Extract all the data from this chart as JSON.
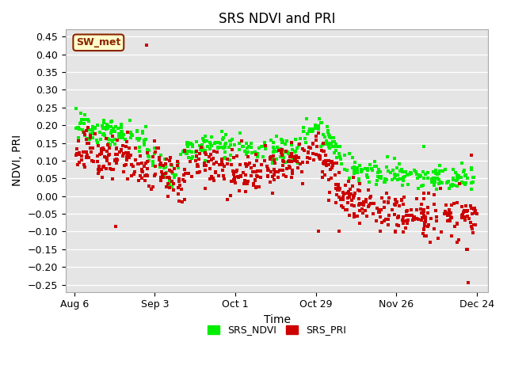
{
  "title": "SRS NDVI and PRI",
  "xlabel": "Time",
  "ylabel": "NDVI, PRI",
  "ylim": [
    -0.27,
    0.47
  ],
  "yticks": [
    -0.25,
    -0.2,
    -0.15,
    -0.1,
    -0.05,
    0.0,
    0.05,
    0.1,
    0.15,
    0.2,
    0.25,
    0.3,
    0.35,
    0.4,
    0.45
  ],
  "bg_color": "#e5e5e5",
  "fig_color": "#ffffff",
  "annotation_text": "SW_met",
  "annotation_bg": "#ffffcc",
  "annotation_border": "#8B2500",
  "ndvi_color": "#00ee00",
  "pri_color": "#cc0000",
  "marker": "s",
  "markersize": 3,
  "title_fontsize": 12,
  "axis_fontsize": 10,
  "tick_fontsize": 9,
  "legend_fontsize": 9,
  "ndvi_label": "SRS_NDVI",
  "pri_label": "SRS_PRI",
  "xtick_doys": [
    218,
    246,
    274,
    302,
    330,
    358
  ],
  "xtick_labels": [
    "Aug 6",
    "Sep 3",
    "Oct 1",
    "Oct 29",
    "Nov 26",
    "Dec 24"
  ]
}
